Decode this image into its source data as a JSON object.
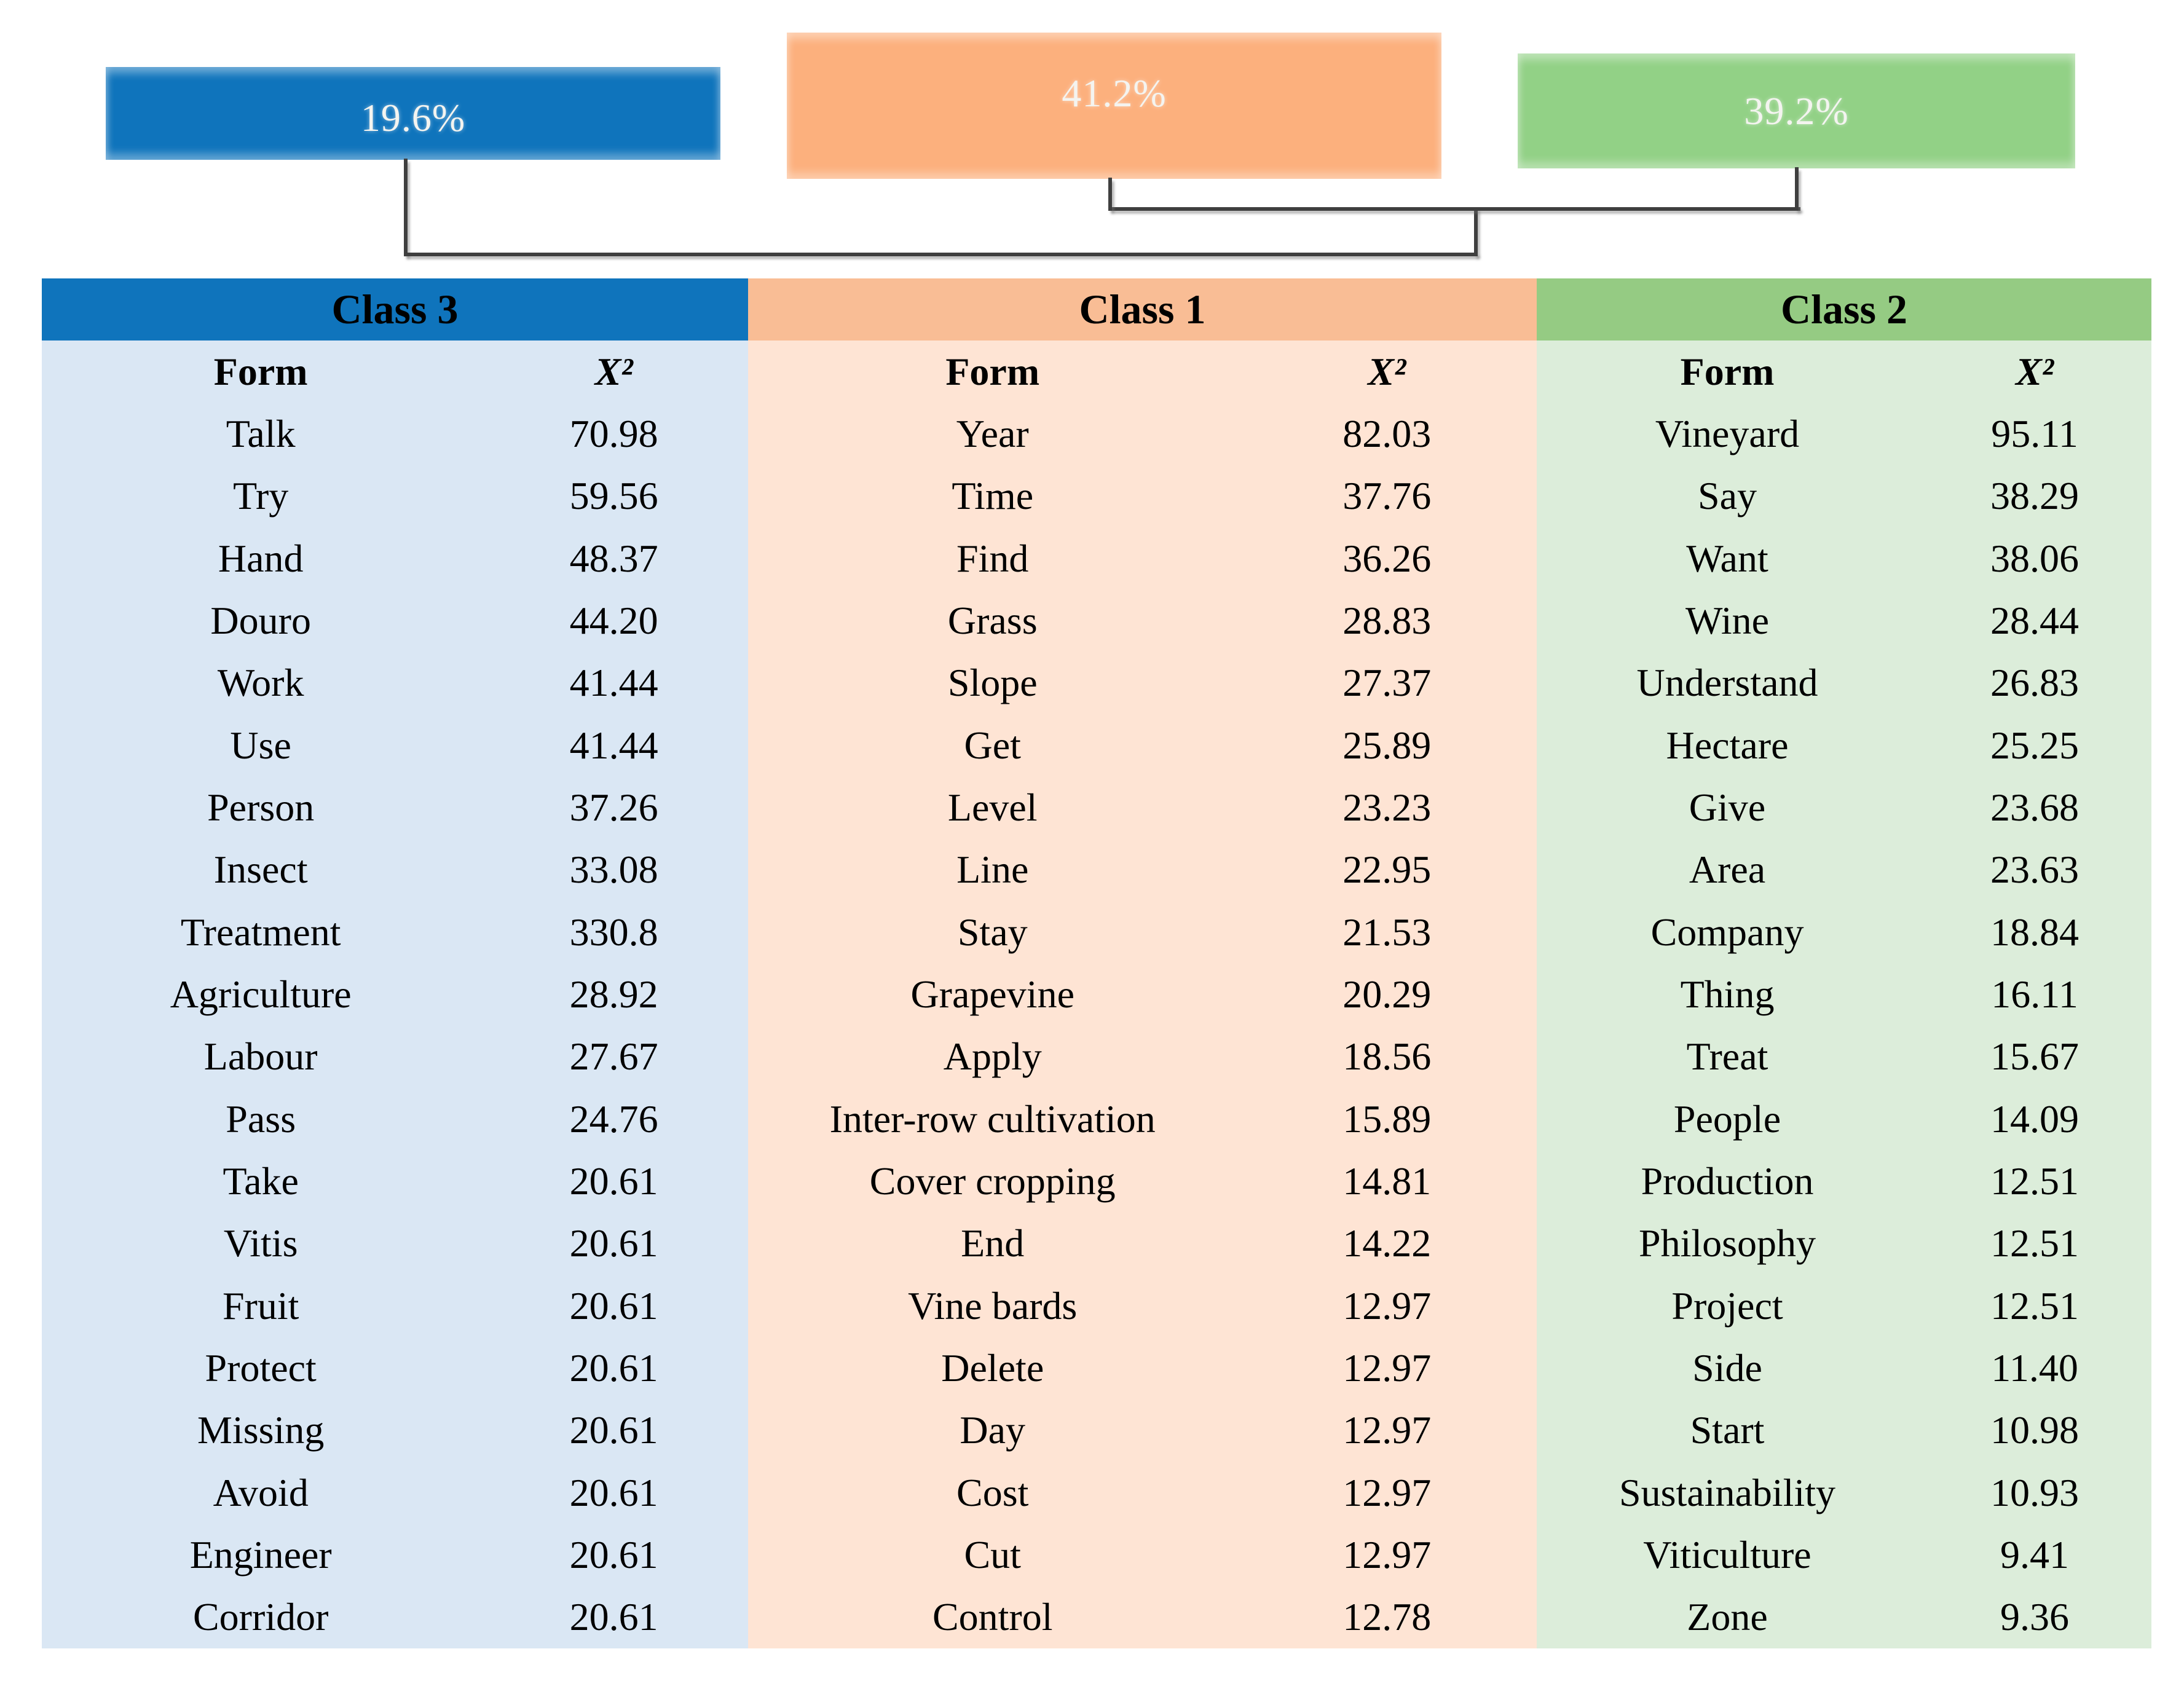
{
  "chart_data": {
    "type": "table",
    "description": "Descending hierarchical classification dendrogram: Class 1 and Class 2 cluster together first, then join Class 3. Each class lists word forms with chi-squared (X²) association values.",
    "dendrogram": {
      "bars": [
        {
          "class": "Class 3",
          "percentage_label": "19.6%",
          "percentage": 19.6
        },
        {
          "class": "Class 1",
          "percentage_label": "41.2%",
          "percentage": 41.2
        },
        {
          "class": "Class 2",
          "percentage_label": "39.2%",
          "percentage": 39.2
        }
      ],
      "join_order": [
        [
          "Class 1",
          "Class 2"
        ],
        [
          "Class 3",
          [
            "Class 1",
            "Class 2"
          ]
        ]
      ]
    },
    "clusters": [
      {
        "title": "Class 3",
        "form_header": "Form",
        "x2_header": "X²",
        "rows": [
          [
            "Talk",
            "70.98"
          ],
          [
            "Try",
            "59.56"
          ],
          [
            "Hand",
            "48.37"
          ],
          [
            "Douro",
            "44.20"
          ],
          [
            "Work",
            "41.44"
          ],
          [
            "Use",
            "41.44"
          ],
          [
            "Person",
            "37.26"
          ],
          [
            "Insect",
            "33.08"
          ],
          [
            "Treatment",
            "330.8"
          ],
          [
            "Agriculture",
            "28.92"
          ],
          [
            "Labour",
            "27.67"
          ],
          [
            "Pass",
            "24.76"
          ],
          [
            "Take",
            "20.61"
          ],
          [
            "Vitis",
            "20.61"
          ],
          [
            "Fruit",
            "20.61"
          ],
          [
            "Protect",
            "20.61"
          ],
          [
            "Missing",
            "20.61"
          ],
          [
            "Avoid",
            "20.61"
          ],
          [
            "Engineer",
            "20.61"
          ],
          [
            "Corridor",
            "20.61"
          ]
        ]
      },
      {
        "title": "Class 1",
        "form_header": "Form",
        "x2_header": "X²",
        "rows": [
          [
            "Year",
            "82.03"
          ],
          [
            "Time",
            "37.76"
          ],
          [
            "Find",
            "36.26"
          ],
          [
            "Grass",
            "28.83"
          ],
          [
            "Slope",
            "27.37"
          ],
          [
            "Get",
            "25.89"
          ],
          [
            "Level",
            "23.23"
          ],
          [
            "Line",
            "22.95"
          ],
          [
            "Stay",
            "21.53"
          ],
          [
            "Grapevine",
            "20.29"
          ],
          [
            "Apply",
            "18.56"
          ],
          [
            "Inter-row cultivation",
            "15.89"
          ],
          [
            "Cover cropping",
            "14.81"
          ],
          [
            "End",
            "14.22"
          ],
          [
            "Vine bards",
            "12.97"
          ],
          [
            "Delete",
            "12.97"
          ],
          [
            "Day",
            "12.97"
          ],
          [
            "Cost",
            "12.97"
          ],
          [
            "Cut",
            "12.97"
          ],
          [
            "Control",
            "12.78"
          ]
        ]
      },
      {
        "title": "Class 2",
        "form_header": "Form",
        "x2_header": "X²",
        "rows": [
          [
            "Vineyard",
            "95.11"
          ],
          [
            "Say",
            "38.29"
          ],
          [
            "Want",
            "38.06"
          ],
          [
            "Wine",
            "28.44"
          ],
          [
            "Understand",
            "26.83"
          ],
          [
            "Hectare",
            "25.25"
          ],
          [
            "Give",
            "23.68"
          ],
          [
            "Area",
            "23.63"
          ],
          [
            "Company",
            "18.84"
          ],
          [
            "Thing",
            "16.11"
          ],
          [
            "Treat",
            "15.67"
          ],
          [
            "People",
            "14.09"
          ],
          [
            "Production",
            "12.51"
          ],
          [
            "Philosophy",
            "12.51"
          ],
          [
            "Project",
            "12.51"
          ],
          [
            "Side",
            "11.40"
          ],
          [
            "Start",
            "10.98"
          ],
          [
            "Sustainability",
            "10.93"
          ],
          [
            "Viticulture",
            "9.41"
          ],
          [
            "Zone",
            "9.36"
          ]
        ]
      }
    ]
  },
  "colors": {
    "class3_bar": "#0F74BC",
    "class3_header": "#0F74BC",
    "class3_body": "#DAE7F4",
    "class1_bar": "#FCB07D",
    "class1_header": "#F9BD95",
    "class1_body": "#FEE4D4",
    "class2_bar": "#92D186",
    "class2_header": "#95CB83",
    "class2_body": "#DCEDDA",
    "connector": "#3F3F3F"
  }
}
